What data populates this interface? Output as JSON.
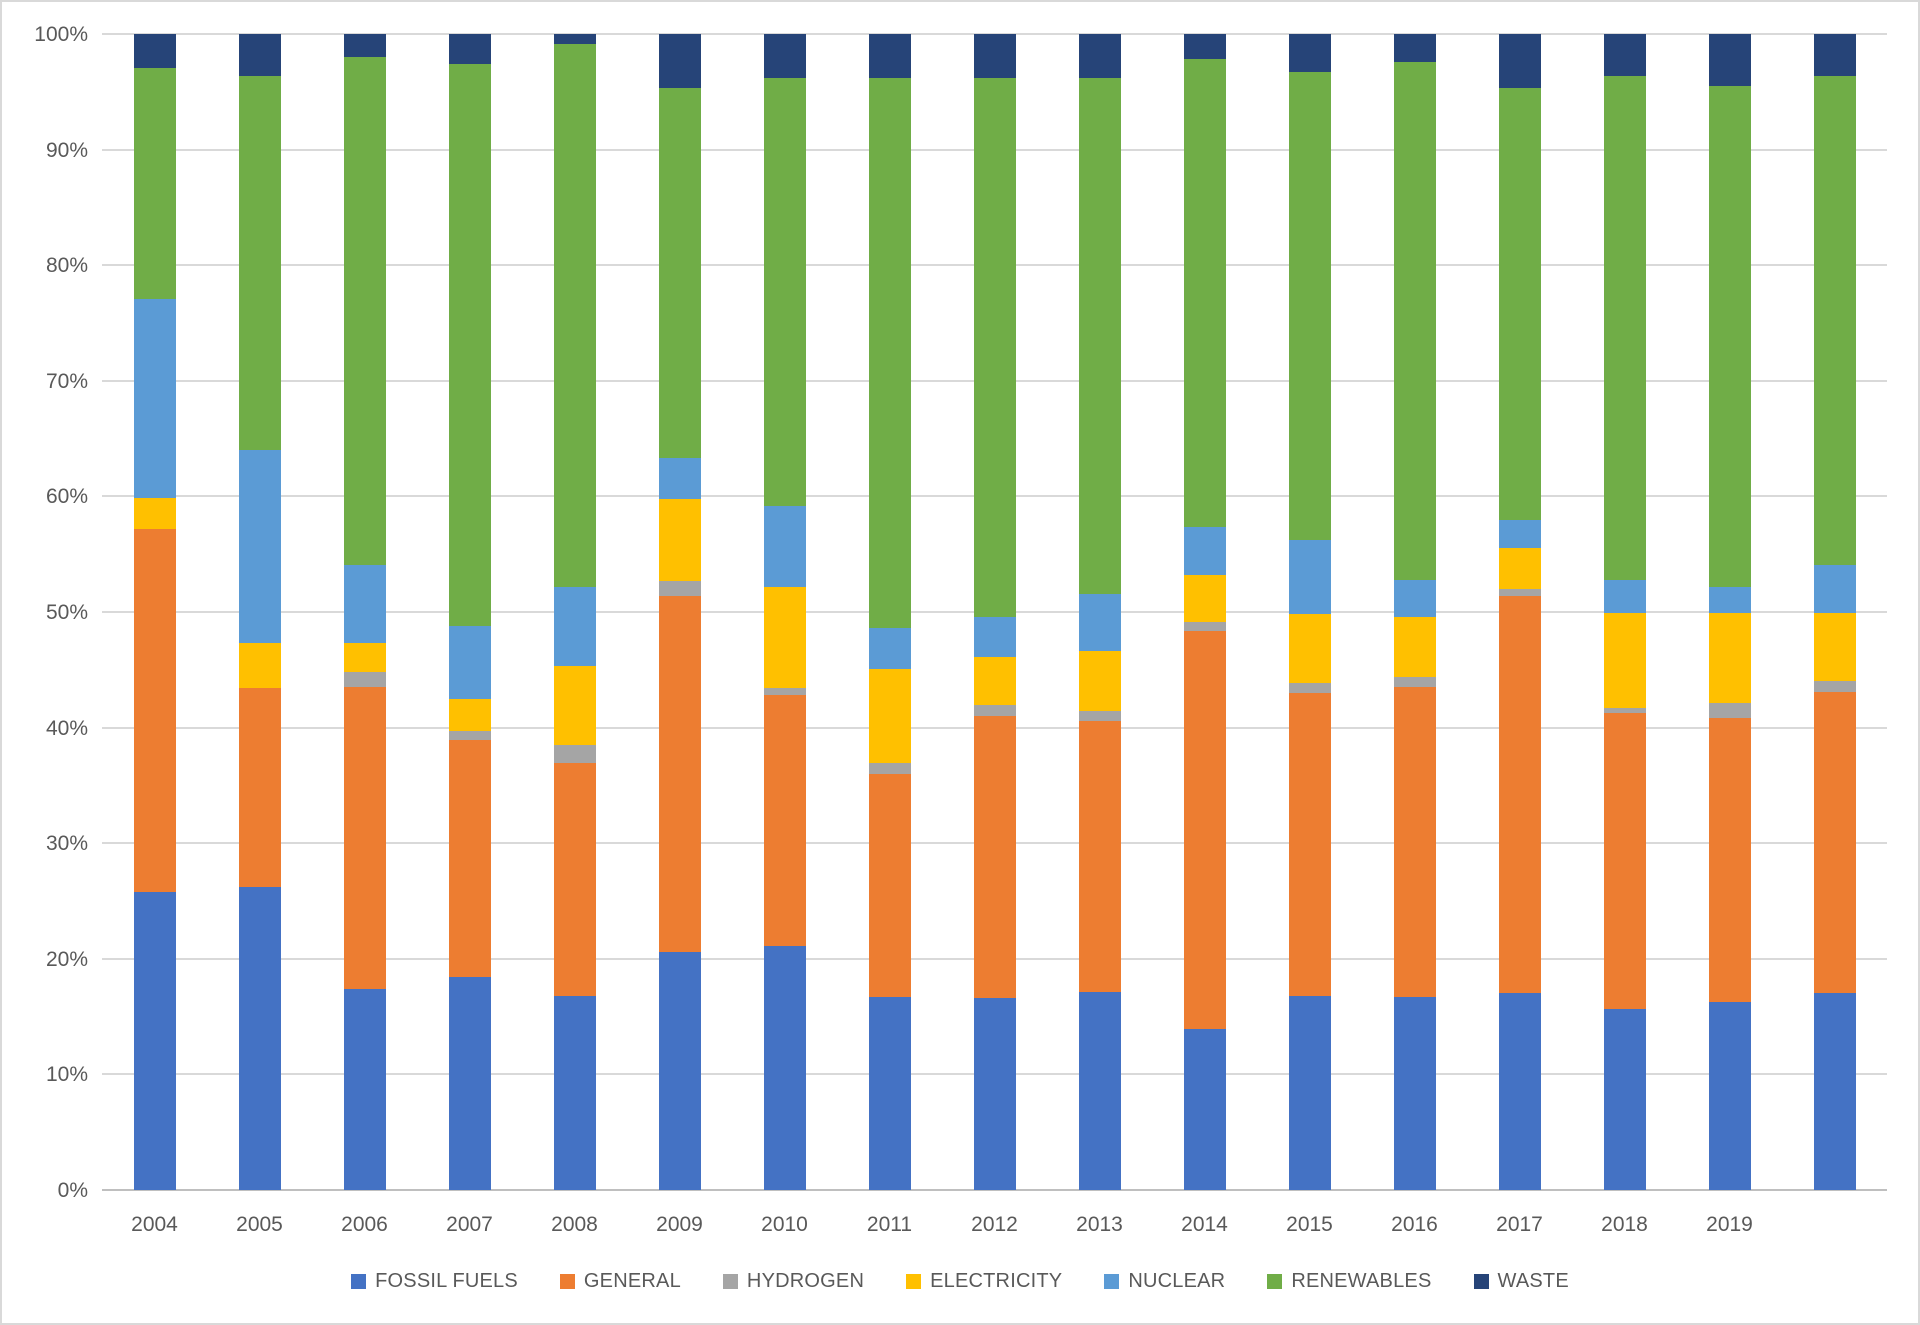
{
  "chart_data": {
    "type": "bar",
    "stacked": true,
    "units": "percent",
    "title": "",
    "categories": [
      "2004",
      "2005",
      "2006",
      "2007",
      "2008",
      "2009",
      "2010",
      "2011",
      "2012",
      "2013",
      "2014",
      "2015",
      "2016",
      "2017",
      "2018",
      "2019",
      ""
    ],
    "series": [
      {
        "name": "FOSSIL FUELS",
        "color": "#4472C4",
        "values": [
          25.8,
          26.2,
          17.4,
          18.4,
          16.8,
          20.6,
          21.1,
          16.7,
          16.6,
          17.1,
          13.9,
          16.8,
          16.7,
          17.0,
          15.7,
          16.3,
          17.0
        ]
      },
      {
        "name": "GENERAL",
        "color": "#ED7D31",
        "values": [
          31.4,
          17.2,
          26.1,
          20.5,
          20.1,
          30.8,
          21.7,
          19.3,
          24.4,
          23.5,
          34.5,
          26.2,
          26.8,
          34.4,
          25.6,
          24.5,
          26.1
        ]
      },
      {
        "name": "HYDROGEN",
        "color": "#A5A5A5",
        "values": [
          0,
          0,
          1.3,
          0.8,
          1.6,
          1.3,
          0.6,
          0.9,
          1.0,
          0.8,
          0.7,
          0.9,
          0.9,
          0.6,
          0.4,
          1.3,
          0.9
        ]
      },
      {
        "name": "ELECTRICITY",
        "color": "#FFC000",
        "values": [
          2.7,
          3.9,
          2.5,
          2.8,
          6.8,
          7.1,
          8.8,
          8.2,
          4.1,
          5.2,
          4.1,
          5.9,
          5.2,
          3.5,
          8.2,
          7.8,
          5.9
        ]
      },
      {
        "name": "NUCLEAR",
        "color": "#5B9BD5",
        "values": [
          17.2,
          16.7,
          6.8,
          6.3,
          6.9,
          3.5,
          7.0,
          3.5,
          3.5,
          5.0,
          4.2,
          6.4,
          3.2,
          2.5,
          2.9,
          2.3,
          4.2
        ]
      },
      {
        "name": "RENEWABLES",
        "color": "#70AD47",
        "values": [
          20.0,
          32.4,
          43.9,
          48.6,
          46.9,
          32.0,
          37.0,
          47.6,
          46.6,
          44.6,
          40.4,
          40.5,
          44.8,
          37.3,
          43.6,
          43.3,
          42.3
        ]
      },
      {
        "name": "WASTE",
        "color": "#264478",
        "values": [
          2.9,
          3.6,
          2.0,
          2.6,
          0.9,
          4.7,
          3.8,
          3.8,
          3.8,
          3.8,
          2.2,
          3.3,
          2.4,
          4.7,
          3.6,
          4.5,
          3.6
        ]
      }
    ],
    "y_axis": {
      "min": 0,
      "max": 100,
      "grid": true,
      "ticks": [
        "0%",
        "10%",
        "20%",
        "30%",
        "40%",
        "50%",
        "60%",
        "70%",
        "80%",
        "90%",
        "100%"
      ]
    },
    "legend": {
      "position": "bottom"
    }
  },
  "colors": {
    "background": "#FFFFFF",
    "border": "#D9D9D9",
    "gridline": "#D9D9D9",
    "axis_line": "#BFBFBF",
    "axis_text": "#595959"
  }
}
